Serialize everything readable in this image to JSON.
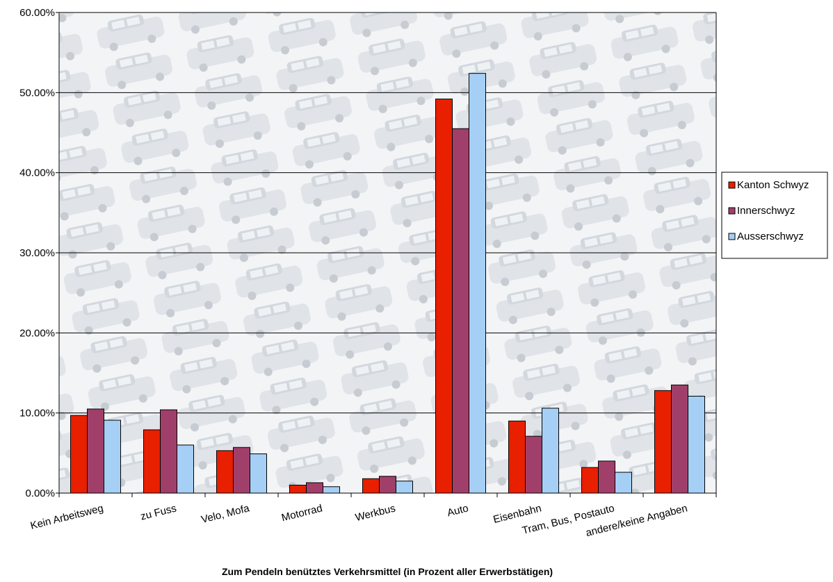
{
  "chart_data": {
    "type": "bar",
    "title": "",
    "xlabel": "Zum Pendeln benütztes Verkehrsmittel (in Prozent aller Erwerbstätigen)",
    "ylabel": "",
    "ylim": [
      0,
      60
    ],
    "yticks": [
      "0.00%",
      "10.00%",
      "20.00%",
      "30.00%",
      "40.00%",
      "50.00%",
      "60.00%"
    ],
    "grid": true,
    "legend": "right",
    "categories": [
      "Kein Arbeitsweg",
      "zu Fuss",
      "Velo, Mofa",
      "Motorrad",
      "Werkbus",
      "Auto",
      "Eisenbahn",
      "Tram, Bus, Postauto",
      "andere/keine Angaben"
    ],
    "series": [
      {
        "name": "Kanton Schwyz",
        "color": "#e82000",
        "values": [
          9.7,
          7.9,
          5.3,
          1.0,
          1.8,
          49.2,
          9.0,
          3.2,
          12.8
        ]
      },
      {
        "name": "Innerschwyz",
        "color": "#a0406a",
        "values": [
          10.5,
          10.4,
          5.7,
          1.3,
          2.1,
          45.5,
          7.1,
          4.0,
          13.5
        ]
      },
      {
        "name": "Ausserschwyz",
        "color": "#a6cff5",
        "values": [
          9.1,
          6.0,
          4.9,
          0.8,
          1.5,
          52.4,
          10.6,
          2.6,
          12.1
        ]
      }
    ]
  }
}
